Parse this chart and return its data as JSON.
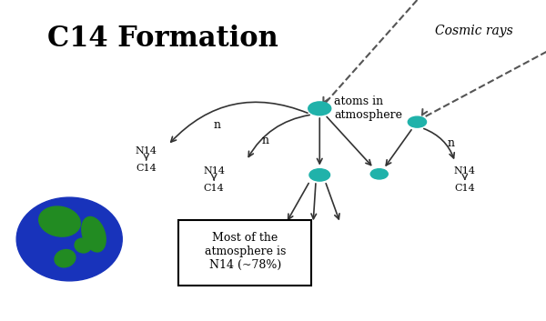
{
  "title": "C14 Formation",
  "background_color": "#ffffff",
  "cosmic_rays_label": "Cosmic rays",
  "atoms_label": "atoms in\natmosphere",
  "atmosphere_box_text": "Most of the\natmosphere is\nN14 (~78%)",
  "teal_color": "#20B2AA",
  "arrow_color": "#333333",
  "dashed_line_color": "#555555"
}
